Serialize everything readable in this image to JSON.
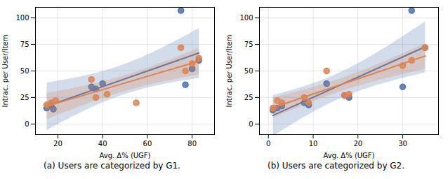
{
  "chart_data": [
    {
      "type": "regplot",
      "xlabel": "Avg. Δ% (UGF)",
      "ylabel": "Intrac. per User/Item",
      "caption": "(a) Users are categorized by G1.",
      "series": [
        {
          "color": "#4C72B0",
          "x": [
            15,
            17,
            18,
            35,
            37,
            40,
            75,
            77,
            80,
            83
          ],
          "values": [
            15,
            18,
            14,
            35,
            33,
            38,
            107,
            37,
            52,
            60
          ]
        },
        {
          "color": "#DD8452",
          "x": [
            15,
            17,
            19,
            35,
            37,
            42,
            55,
            75,
            77,
            80,
            83
          ],
          "values": [
            18,
            20,
            22,
            42,
            25,
            28,
            20,
            72,
            50,
            57,
            62
          ]
        }
      ],
      "xlim": [
        10,
        90
      ],
      "ylim": [
        -10,
        110
      ],
      "xticks": [
        20,
        40,
        60,
        80
      ],
      "yticks": [
        0,
        25,
        50,
        75,
        100
      ],
      "grid": true,
      "marker": "circle"
    },
    {
      "type": "regplot",
      "xlabel": "Avg. Δ% (UGF)",
      "ylabel": "Intrac. per User/Item",
      "caption": "(b) Users are categorized by G2.",
      "series": [
        {
          "color": "#4C72B0",
          "x": [
            1,
            2,
            3,
            8,
            9,
            13,
            17,
            18,
            30,
            32,
            35
          ],
          "values": [
            13,
            15,
            17,
            20,
            18,
            38,
            27,
            25,
            35,
            107,
            72
          ]
        },
        {
          "color": "#DD8452",
          "x": [
            1,
            2,
            3,
            8,
            9,
            13,
            17,
            18,
            30,
            32,
            35
          ],
          "values": [
            15,
            22,
            20,
            25,
            20,
            50,
            27,
            28,
            55,
            60,
            72
          ]
        }
      ],
      "xlim": [
        -2,
        38
      ],
      "ylim": [
        -10,
        110
      ],
      "xticks": [
        0,
        10,
        20,
        30
      ],
      "yticks": [
        0,
        25,
        50,
        75,
        100
      ],
      "grid": true,
      "marker": "circle"
    }
  ]
}
